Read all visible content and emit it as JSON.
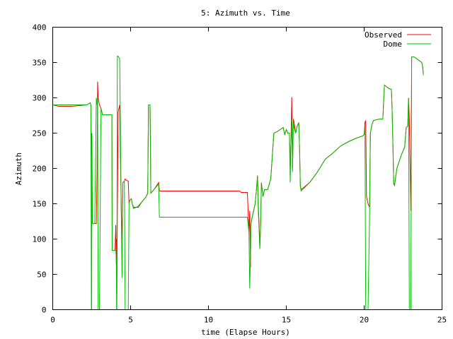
{
  "chart_data": {
    "type": "line",
    "title": "5: Azimuth vs. Time",
    "xlabel": "time (Elapse Hours)",
    "ylabel": "Azimuth",
    "xlim": [
      0,
      25
    ],
    "ylim": [
      0,
      400
    ],
    "xticks": [
      0,
      5,
      10,
      15,
      20,
      25
    ],
    "yticks": [
      0,
      50,
      100,
      150,
      200,
      250,
      300,
      350,
      400
    ],
    "grid": false,
    "legend_position": "top-right",
    "series": [
      {
        "name": "Observed",
        "color": "#ff0000",
        "points": [
          [
            0,
            290
          ],
          [
            0.4,
            288
          ],
          [
            1.2,
            288
          ],
          [
            2.2,
            290
          ],
          [
            2.4,
            293
          ],
          [
            2.45,
            290
          ],
          [
            2.48,
            220
          ],
          [
            2.5,
            250
          ],
          [
            2.52,
            160
          ],
          [
            2.55,
            122
          ],
          [
            2.7,
            122
          ],
          [
            2.8,
            122
          ],
          [
            2.85,
            200
          ],
          [
            2.88,
            323
          ],
          [
            2.92,
            300
          ],
          [
            3.0,
            290
          ],
          [
            3.1,
            285
          ],
          [
            3.2,
            276
          ],
          [
            3.8,
            276
          ],
          [
            3.82,
            84
          ],
          [
            4.0,
            84
          ],
          [
            4.05,
            120
          ],
          [
            4.08,
            65
          ],
          [
            4.1,
            100
          ],
          [
            4.12,
            22
          ],
          [
            4.15,
            140
          ],
          [
            4.2,
            280
          ],
          [
            4.3,
            290
          ],
          [
            4.4,
            140
          ],
          [
            4.45,
            100
          ],
          [
            4.5,
            180
          ],
          [
            4.6,
            182
          ],
          [
            4.65,
            185
          ],
          [
            4.75,
            183
          ],
          [
            4.85,
            182
          ],
          [
            4.9,
            150
          ],
          [
            4.95,
            155
          ],
          [
            5.05,
            157
          ],
          [
            5.1,
            150
          ],
          [
            5.2,
            145
          ],
          [
            5.5,
            145
          ],
          [
            5.7,
            152
          ],
          [
            6.0,
            160
          ],
          [
            6.1,
            165
          ],
          [
            6.15,
            290
          ],
          [
            6.25,
            290
          ],
          [
            6.3,
            165
          ],
          [
            6.5,
            170
          ],
          [
            6.8,
            180
          ],
          [
            6.85,
            168
          ],
          [
            7.5,
            168
          ],
          [
            10,
            168
          ],
          [
            12.0,
            168
          ],
          [
            12.1,
            166
          ],
          [
            12.5,
            166
          ],
          [
            12.6,
            110
          ],
          [
            12.65,
            140
          ],
          [
            12.7,
            60
          ],
          [
            12.72,
            120
          ],
          [
            12.8,
            130
          ],
          [
            12.9,
            140
          ],
          [
            13.0,
            150
          ],
          [
            13.1,
            175
          ],
          [
            13.15,
            190
          ],
          [
            13.2,
            150
          ],
          [
            13.3,
            90
          ],
          [
            13.35,
            120
          ],
          [
            13.4,
            180
          ],
          [
            13.5,
            160
          ],
          [
            13.6,
            170
          ],
          [
            13.8,
            170
          ],
          [
            14.0,
            185
          ],
          [
            14.2,
            250
          ],
          [
            14.4,
            252
          ],
          [
            14.6,
            255
          ],
          [
            14.8,
            258
          ],
          [
            14.9,
            248
          ],
          [
            15.0,
            255
          ],
          [
            15.1,
            250
          ],
          [
            15.2,
            250
          ],
          [
            15.25,
            200
          ],
          [
            15.3,
            240
          ],
          [
            15.35,
            301
          ],
          [
            15.4,
            200
          ],
          [
            15.45,
            270
          ],
          [
            15.5,
            265
          ],
          [
            15.6,
            250
          ],
          [
            15.7,
            260
          ],
          [
            15.8,
            265
          ],
          [
            15.85,
            230
          ],
          [
            15.9,
            175
          ],
          [
            15.95,
            170
          ],
          [
            16.5,
            180
          ],
          [
            17.0,
            195
          ],
          [
            17.5,
            213
          ],
          [
            18.0,
            222
          ],
          [
            18.5,
            232
          ],
          [
            19.0,
            238
          ],
          [
            19.5,
            243
          ],
          [
            19.9,
            246
          ],
          [
            20.0,
            248
          ],
          [
            20.05,
            265
          ],
          [
            20.1,
            268
          ],
          [
            20.15,
            160
          ],
          [
            20.25,
            150
          ],
          [
            20.35,
            145
          ],
          [
            20.4,
            250
          ],
          [
            20.5,
            262
          ],
          [
            20.6,
            268
          ],
          [
            21.0,
            270
          ],
          [
            21.2,
            270
          ],
          [
            21.3,
            318
          ],
          [
            21.6,
            313
          ],
          [
            21.75,
            312
          ],
          [
            21.8,
            280
          ],
          [
            21.85,
            230
          ],
          [
            21.9,
            178
          ],
          [
            21.95,
            176
          ],
          [
            22.1,
            200
          ],
          [
            22.4,
            220
          ],
          [
            22.6,
            230
          ],
          [
            22.7,
            258
          ],
          [
            22.8,
            260
          ],
          [
            22.85,
            300
          ],
          [
            22.9,
            270
          ],
          [
            23.0,
            140
          ],
          [
            23.05,
            358
          ],
          [
            23.2,
            358
          ],
          [
            23.4,
            355
          ],
          [
            23.7,
            350
          ],
          [
            23.75,
            345
          ],
          [
            23.8,
            335
          ]
        ]
      },
      {
        "name": "Dome",
        "color": "#00c000",
        "points": [
          [
            0,
            290
          ],
          [
            0.4,
            290
          ],
          [
            1.2,
            290
          ],
          [
            2.2,
            290
          ],
          [
            2.4,
            293
          ],
          [
            2.45,
            290
          ],
          [
            2.48,
            0
          ],
          [
            2.5,
            0
          ],
          [
            2.52,
            250
          ],
          [
            2.55,
            122
          ],
          [
            2.7,
            122
          ],
          [
            2.8,
            300
          ],
          [
            2.85,
            290
          ],
          [
            2.88,
            300
          ],
          [
            2.92,
            0
          ],
          [
            3.0,
            0
          ],
          [
            3.1,
            285
          ],
          [
            3.2,
            276
          ],
          [
            3.8,
            276
          ],
          [
            3.82,
            84
          ],
          [
            4.0,
            84
          ],
          [
            4.05,
            84
          ],
          [
            4.08,
            70
          ],
          [
            4.1,
            0
          ],
          [
            4.12,
            0
          ],
          [
            4.15,
            359
          ],
          [
            4.2,
            359
          ],
          [
            4.3,
            355
          ],
          [
            4.4,
            140
          ],
          [
            4.45,
            45
          ],
          [
            4.5,
            180
          ],
          [
            4.6,
            182
          ],
          [
            4.65,
            0
          ],
          [
            4.75,
            0
          ],
          [
            4.85,
            0
          ],
          [
            4.9,
            150
          ],
          [
            4.95,
            155
          ],
          [
            5.05,
            157
          ],
          [
            5.1,
            150
          ],
          [
            5.2,
            143
          ],
          [
            5.5,
            147
          ],
          [
            5.7,
            152
          ],
          [
            6.0,
            160
          ],
          [
            6.1,
            165
          ],
          [
            6.15,
            290
          ],
          [
            6.25,
            290
          ],
          [
            6.3,
            165
          ],
          [
            6.5,
            170
          ],
          [
            6.8,
            178
          ],
          [
            6.85,
            131
          ],
          [
            7.5,
            131
          ],
          [
            10,
            131
          ],
          [
            12.0,
            131
          ],
          [
            12.1,
            131
          ],
          [
            12.5,
            131
          ],
          [
            12.6,
            110
          ],
          [
            12.65,
            30
          ],
          [
            12.7,
            80
          ],
          [
            12.72,
            120
          ],
          [
            12.8,
            130
          ],
          [
            12.9,
            140
          ],
          [
            13.0,
            150
          ],
          [
            13.1,
            175
          ],
          [
            13.15,
            190
          ],
          [
            13.2,
            140
          ],
          [
            13.3,
            86
          ],
          [
            13.35,
            120
          ],
          [
            13.4,
            180
          ],
          [
            13.5,
            160
          ],
          [
            13.6,
            170
          ],
          [
            13.8,
            170
          ],
          [
            14.0,
            185
          ],
          [
            14.2,
            250
          ],
          [
            14.4,
            252
          ],
          [
            14.6,
            255
          ],
          [
            14.8,
            258
          ],
          [
            14.9,
            248
          ],
          [
            15.0,
            255
          ],
          [
            15.1,
            250
          ],
          [
            15.2,
            250
          ],
          [
            15.25,
            180
          ],
          [
            15.3,
            240
          ],
          [
            15.35,
            270
          ],
          [
            15.4,
            195
          ],
          [
            15.45,
            265
          ],
          [
            15.5,
            258
          ],
          [
            15.6,
            250
          ],
          [
            15.7,
            260
          ],
          [
            15.8,
            265
          ],
          [
            15.85,
            230
          ],
          [
            15.9,
            175
          ],
          [
            15.95,
            168
          ],
          [
            16.5,
            180
          ],
          [
            17.0,
            195
          ],
          [
            17.5,
            213
          ],
          [
            18.0,
            222
          ],
          [
            18.5,
            232
          ],
          [
            19.0,
            238
          ],
          [
            19.5,
            243
          ],
          [
            19.9,
            246
          ],
          [
            20.0,
            248
          ],
          [
            20.05,
            260
          ],
          [
            20.1,
            0
          ],
          [
            20.15,
            0
          ],
          [
            20.25,
            0
          ],
          [
            20.35,
            140
          ],
          [
            20.4,
            250
          ],
          [
            20.5,
            262
          ],
          [
            20.6,
            268
          ],
          [
            21.0,
            270
          ],
          [
            21.2,
            270
          ],
          [
            21.3,
            318
          ],
          [
            21.6,
            313
          ],
          [
            21.75,
            312
          ],
          [
            21.8,
            280
          ],
          [
            21.85,
            230
          ],
          [
            21.9,
            178
          ],
          [
            21.95,
            176
          ],
          [
            22.1,
            200
          ],
          [
            22.4,
            220
          ],
          [
            22.6,
            230
          ],
          [
            22.7,
            258
          ],
          [
            22.8,
            260
          ],
          [
            22.85,
            300
          ],
          [
            22.9,
            0
          ],
          [
            23.0,
            0
          ],
          [
            23.05,
            358
          ],
          [
            23.2,
            358
          ],
          [
            23.4,
            355
          ],
          [
            23.7,
            350
          ],
          [
            23.75,
            345
          ],
          [
            23.8,
            332
          ]
        ]
      }
    ]
  }
}
